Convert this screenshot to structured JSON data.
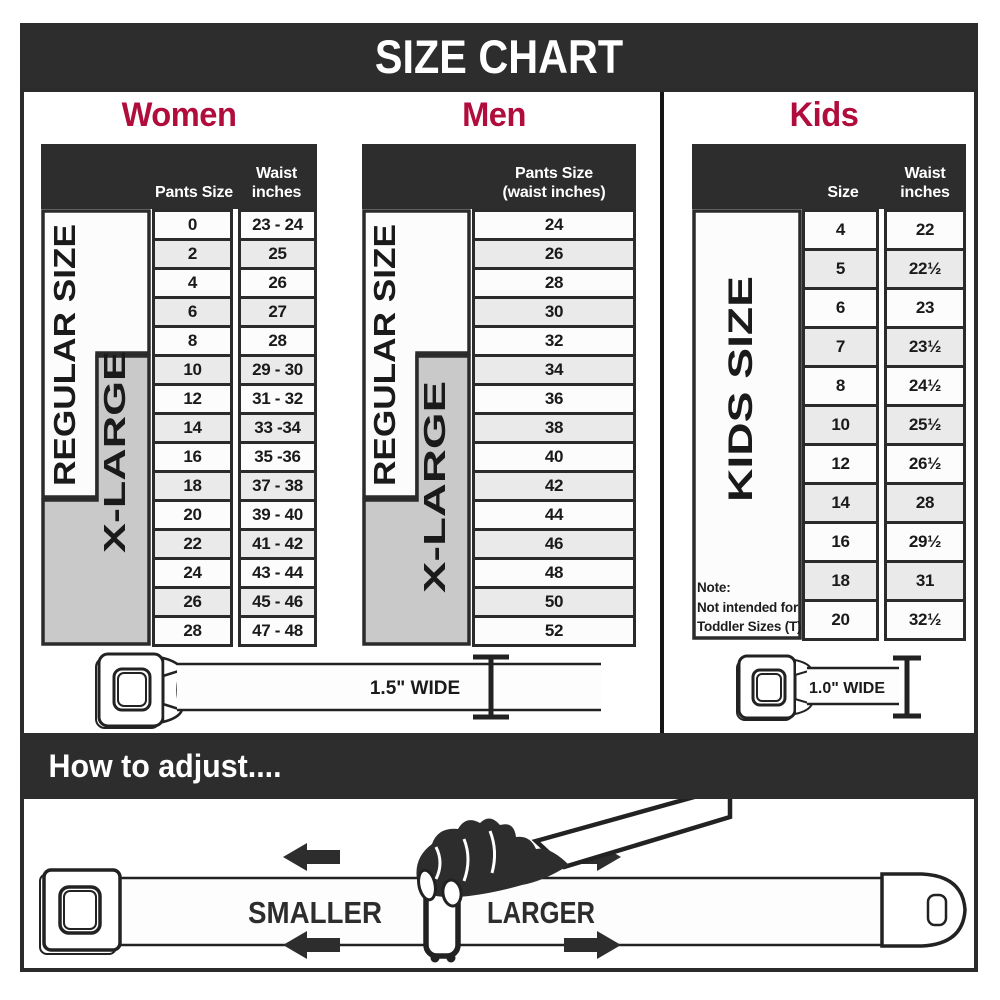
{
  "title": "SIZE CHART",
  "colors": {
    "dark": "#2d2d2d",
    "accent": "#b00d3c",
    "row_light": "#fcfcfc",
    "row_shaded": "#eaeaea",
    "xlarge_gray": "#c9c9c9"
  },
  "women": {
    "title": "Women",
    "headers": {
      "pants": "Pants Size",
      "waist_line1": "Waist",
      "waist_line2": "inches"
    },
    "regular_label": "REGULAR SIZE",
    "xlarge_label": "X-LARGE",
    "rows": [
      [
        "0",
        "23 - 24"
      ],
      [
        "2",
        "25"
      ],
      [
        "4",
        "26"
      ],
      [
        "6",
        "27"
      ],
      [
        "8",
        "28"
      ],
      [
        "10",
        "29 - 30"
      ],
      [
        "12",
        "31 - 32"
      ],
      [
        "14",
        "33 -34"
      ],
      [
        "16",
        "35 -36"
      ],
      [
        "18",
        "37 - 38"
      ],
      [
        "20",
        "39 - 40"
      ],
      [
        "22",
        "41 - 42"
      ],
      [
        "24",
        "43 - 44"
      ],
      [
        "26",
        "45 - 46"
      ],
      [
        "28",
        "47 - 48"
      ]
    ],
    "belt_width_label": "1.5\" WIDE"
  },
  "men": {
    "title": "Men",
    "headers": {
      "line1": "Pants Size",
      "line2": "(waist inches)"
    },
    "regular_label": "REGULAR SIZE",
    "xlarge_label": "X-LARGE",
    "rows": [
      [
        "24"
      ],
      [
        "26"
      ],
      [
        "28"
      ],
      [
        "30"
      ],
      [
        "32"
      ],
      [
        "34"
      ],
      [
        "36"
      ],
      [
        "38"
      ],
      [
        "40"
      ],
      [
        "42"
      ],
      [
        "44"
      ],
      [
        "46"
      ],
      [
        "48"
      ],
      [
        "50"
      ],
      [
        "52"
      ]
    ]
  },
  "kids": {
    "title": "Kids",
    "headers": {
      "size": "Size",
      "waist_line1": "Waist",
      "waist_line2": "inches"
    },
    "kids_label": "KIDS SIZE",
    "note_line1": "Note:",
    "note_line2": "Not intended for",
    "note_line3": "Toddler Sizes (T)",
    "rows": [
      [
        "4",
        "22"
      ],
      [
        "5",
        "22½"
      ],
      [
        "6",
        "23"
      ],
      [
        "7",
        "23½"
      ],
      [
        "8",
        "24½"
      ],
      [
        "10",
        "25½"
      ],
      [
        "12",
        "26½"
      ],
      [
        "14",
        "28"
      ],
      [
        "16",
        "29½"
      ],
      [
        "18",
        "31"
      ],
      [
        "20",
        "32½"
      ]
    ],
    "belt_width_label": "1.0\" WIDE"
  },
  "adjust": {
    "title": "How to adjust....",
    "smaller_label": "SMALLER",
    "larger_label": "LARGER"
  }
}
